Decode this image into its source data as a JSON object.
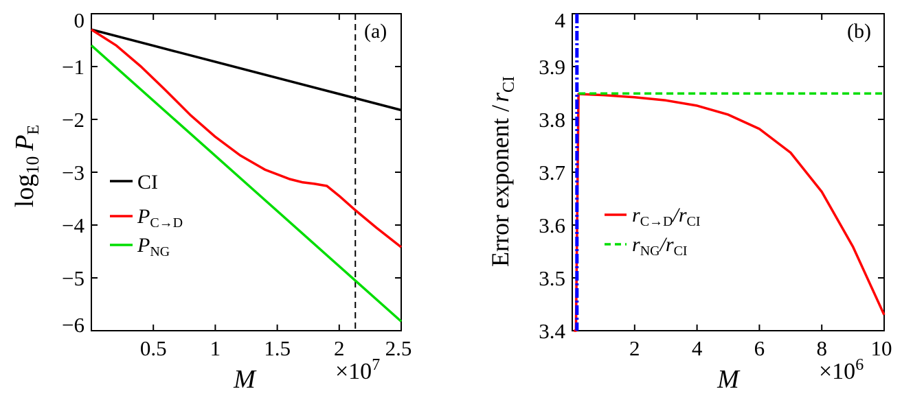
{
  "chart_data": [
    {
      "id": "a",
      "type": "line",
      "panel_label": "(a)",
      "xlabel": "M",
      "x_multiplier": "×10",
      "x_multiplier_exp": "7",
      "ylabel_main": "log",
      "ylabel_sub": "10",
      "ylabel_var": "P",
      "ylabel_var_sub": "E",
      "xlim": [
        0,
        2.5
      ],
      "ylim": [
        -6,
        0
      ],
      "xticks": [
        0.5,
        1,
        1.5,
        2,
        2.5
      ],
      "xtick_labels": [
        "0.5",
        "1",
        "1.5",
        "2",
        "2.5"
      ],
      "yticks": [
        0,
        -1,
        -2,
        -3,
        -4,
        -5,
        -6
      ],
      "ytick_labels": [
        "0",
        "−1",
        "−2",
        "−3",
        "−4",
        "−5",
        "−6"
      ],
      "vline": {
        "x": 2.13,
        "style": "dashed",
        "color": "#000000"
      },
      "series": [
        {
          "name": "CI",
          "legend_main": "CI",
          "legend_sub": "",
          "color": "#000000",
          "style": "solid",
          "x": [
            0,
            0.5,
            1,
            1.5,
            2,
            2.5
          ],
          "y": [
            -0.3,
            -0.605,
            -0.91,
            -1.215,
            -1.52,
            -1.825
          ]
        },
        {
          "name": "P_C→D",
          "legend_main": "P",
          "legend_sub": "C→D",
          "color": "#ff0000",
          "style": "solid",
          "x": [
            0,
            0.2,
            0.4,
            0.6,
            0.8,
            1.0,
            1.2,
            1.4,
            1.6,
            1.7,
            1.8,
            1.9,
            2.0,
            2.13,
            2.3,
            2.5
          ],
          "y": [
            -0.3,
            -0.6,
            -1.0,
            -1.45,
            -1.92,
            -2.33,
            -2.68,
            -2.95,
            -3.13,
            -3.19,
            -3.22,
            -3.26,
            -3.45,
            -3.72,
            -4.05,
            -4.42
          ]
        },
        {
          "name": "P_NG",
          "legend_main": "P",
          "legend_sub": "NG",
          "color": "#00dd00",
          "style": "solid",
          "x": [
            0,
            0.5,
            1,
            1.5,
            2,
            2.5
          ],
          "y": [
            -0.6,
            -1.645,
            -2.69,
            -3.735,
            -4.78,
            -5.825
          ]
        }
      ],
      "legend_position": "center-left"
    },
    {
      "id": "b",
      "type": "line",
      "panel_label": "(b)",
      "xlabel": "M",
      "x_multiplier": "×10",
      "x_multiplier_exp": "6",
      "ylabel": "Error exponent /",
      "ylabel_var": "r",
      "ylabel_var_sub": "CI",
      "xlim": [
        0,
        10
      ],
      "ylim": [
        3.4,
        4.0
      ],
      "xticks": [
        2,
        4,
        6,
        8,
        10
      ],
      "xtick_labels": [
        "2",
        "4",
        "6",
        "8",
        "10"
      ],
      "yticks": [
        3.4,
        3.5,
        3.6,
        3.7,
        3.8,
        3.9,
        4
      ],
      "ytick_labels": [
        "3.4",
        "3.5",
        "3.6",
        "3.7",
        "3.8",
        "3.9",
        "4"
      ],
      "vline": {
        "x": 0.15,
        "style": "dash-dot",
        "color": "#0000ff"
      },
      "series": [
        {
          "name": "r_C→D/r_CI",
          "legend_main": "r",
          "legend_sub": "C→D",
          "legend_tail": "/r",
          "legend_tail_sub": "CI",
          "color": "#ff0000",
          "style": "solid",
          "x": [
            0.05,
            0.12,
            0.2,
            1,
            2,
            3,
            4,
            5,
            6,
            7,
            8,
            9,
            10
          ],
          "y": [
            3.4,
            3.4,
            3.848,
            3.846,
            3.842,
            3.836,
            3.826,
            3.809,
            3.782,
            3.737,
            3.663,
            3.559,
            3.43
          ]
        },
        {
          "name": "r_NG/r_CI",
          "legend_main": "r",
          "legend_sub": "NG",
          "legend_tail": "/r",
          "legend_tail_sub": "CI",
          "color": "#00dd00",
          "style": "dashed",
          "x": [
            0.2,
            10
          ],
          "y": [
            3.849,
            3.849
          ]
        }
      ],
      "legend_position": "center-left"
    }
  ]
}
